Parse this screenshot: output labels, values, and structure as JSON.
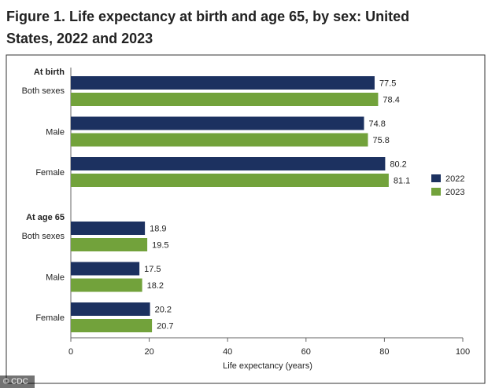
{
  "chart_data": {
    "type": "bar",
    "orientation": "horizontal",
    "title": [
      "Figure 1. Life expectancy at birth and age 65, by sex: United",
      "States, 2022 and 2023"
    ],
    "groups": [
      {
        "name": "At birth",
        "categories": [
          "Both sexes",
          "Male",
          "Female"
        ]
      },
      {
        "name": "At age 65",
        "categories": [
          "Both sexes",
          "Male",
          "Female"
        ]
      }
    ],
    "series": [
      {
        "name": "2022",
        "color": "#1c3160",
        "values": [
          77.5,
          74.8,
          80.2,
          18.9,
          17.5,
          20.2
        ]
      },
      {
        "name": "2023",
        "color": "#72a23b",
        "values": [
          78.4,
          75.8,
          81.1,
          19.5,
          18.2,
          20.7
        ]
      }
    ],
    "xlabel": "Life expectancy (years)",
    "xlim": [
      0,
      100
    ],
    "xticks": [
      0,
      20,
      40,
      60,
      80,
      100
    ],
    "legend": "right",
    "credit": "© CDC"
  }
}
